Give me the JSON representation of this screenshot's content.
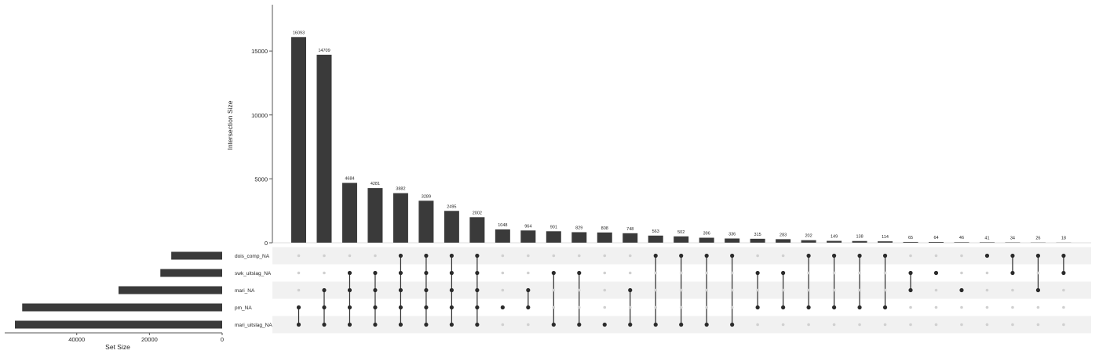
{
  "chart_data": {
    "type": "upset",
    "intersection_axis": {
      "label": "Intersection Size",
      "ticks": [
        0,
        5000,
        10000,
        15000
      ],
      "ylim": [
        0,
        18500
      ]
    },
    "set_size_axis": {
      "label": "Set Size",
      "ticks": [
        0,
        20000,
        40000
      ],
      "xlim": [
        0,
        57000
      ],
      "reversed": true
    },
    "sets": [
      {
        "name": "dois_comp_NA",
        "size": 14000
      },
      {
        "name": "swk_uitslag_NA",
        "size": 17000
      },
      {
        "name": "mari_NA",
        "size": 28500
      },
      {
        "name": "pm_NA",
        "size": 55000
      },
      {
        "name": "mari_uitslag_NA",
        "size": 57000
      }
    ],
    "intersections": [
      {
        "value": 16093,
        "label": "16093",
        "members": [
          3,
          4
        ]
      },
      {
        "value": 14709,
        "label": "14709",
        "members": [
          2,
          3,
          4
        ]
      },
      {
        "value": 4684,
        "label": "4684",
        "members": [
          1,
          2,
          3,
          4
        ]
      },
      {
        "value": 4281,
        "label": "4281",
        "members": [
          1,
          2,
          3,
          4
        ]
      },
      {
        "value": 3882,
        "label": "3882",
        "members": [
          0,
          1,
          2,
          3,
          4
        ]
      },
      {
        "value": 3289,
        "label": "3289",
        "members": [
          0,
          1,
          2,
          3,
          4
        ]
      },
      {
        "value": 2495,
        "label": "2495",
        "members": [
          0,
          1,
          2,
          3,
          4
        ]
      },
      {
        "value": 2002,
        "label": "2002",
        "members": [
          0,
          1,
          2,
          3,
          4
        ]
      },
      {
        "value": 1048,
        "label": "1048",
        "members": [
          3
        ]
      },
      {
        "value": 964,
        "label": "964",
        "members": [
          2,
          3
        ]
      },
      {
        "value": 901,
        "label": "901",
        "members": [
          1,
          4
        ]
      },
      {
        "value": 829,
        "label": "829",
        "members": [
          1,
          4
        ]
      },
      {
        "value": 808,
        "label": "808",
        "members": [
          4
        ]
      },
      {
        "value": 748,
        "label": "748",
        "members": [
          2,
          4
        ]
      },
      {
        "value": 563,
        "label": "563",
        "members": [
          0,
          4
        ]
      },
      {
        "value": 502,
        "label": "502",
        "members": [
          0,
          4
        ]
      },
      {
        "value": 396,
        "label": "396",
        "members": [
          0,
          4
        ]
      },
      {
        "value": 336,
        "label": "336",
        "members": [
          0,
          4
        ]
      },
      {
        "value": 315,
        "label": "315",
        "members": [
          1,
          3
        ]
      },
      {
        "value": 283,
        "label": "283",
        "members": [
          1,
          3
        ]
      },
      {
        "value": 202,
        "label": "202",
        "members": [
          0,
          3
        ]
      },
      {
        "value": 149,
        "label": "149",
        "members": [
          0,
          3
        ]
      },
      {
        "value": 138,
        "label": "138",
        "members": [
          0,
          3
        ]
      },
      {
        "value": 114,
        "label": "114",
        "members": [
          0,
          3
        ]
      },
      {
        "value": 65,
        "label": "65",
        "members": [
          1,
          2
        ]
      },
      {
        "value": 64,
        "label": "64",
        "members": [
          1
        ]
      },
      {
        "value": 46,
        "label": "46",
        "members": [
          2
        ]
      },
      {
        "value": 41,
        "label": "41",
        "members": [
          0
        ]
      },
      {
        "value": 34,
        "label": "34",
        "members": [
          0,
          1
        ]
      },
      {
        "value": 26,
        "label": "26",
        "members": [
          0,
          2
        ]
      },
      {
        "value": 18,
        "label": "18",
        "members": [
          0,
          1
        ]
      }
    ],
    "colors": {
      "bar": "#3a3a3a",
      "dot_active": "#2b2b2b",
      "dot_inactive": "#d0d0d0",
      "stripe": "#f1f1f1",
      "axis": "#555555"
    }
  }
}
